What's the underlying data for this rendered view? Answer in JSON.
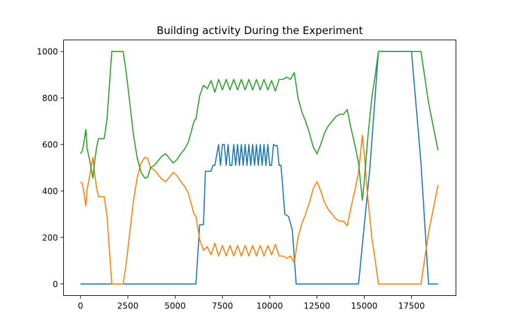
{
  "chart_data": {
    "type": "line",
    "title": "Building activity During the Experiment",
    "xlabel": "",
    "ylabel": "",
    "xlim": [
      -900,
      19850
    ],
    "ylim": [
      -50,
      1050
    ],
    "grid": false,
    "xticks": [
      0,
      2500,
      5000,
      7500,
      10000,
      12500,
      15000,
      17500
    ],
    "xtick_labels": [
      "0",
      "2500",
      "5000",
      "7500",
      "10000",
      "12500",
      "15000",
      "17500"
    ],
    "yticks": [
      0,
      200,
      400,
      600,
      800,
      1000
    ],
    "ytick_labels": [
      "0",
      "200",
      "400",
      "600",
      "800",
      "1000"
    ],
    "series": [
      {
        "color": "#1f77b4",
        "x": [
          0,
          6100,
          6300,
          6500,
          6600,
          6900,
          7000,
          7100,
          7300,
          7400,
          7500,
          7600,
          7700,
          7800,
          7900,
          8000,
          8100,
          8200,
          8300,
          8400,
          8500,
          8600,
          8700,
          8800,
          8900,
          9000,
          9100,
          9200,
          9300,
          9400,
          9500,
          9600,
          9700,
          9800,
          9900,
          10000,
          10100,
          10200,
          10300,
          10400,
          10500,
          10600,
          10800,
          11000,
          11200,
          11400,
          14700,
          15300,
          15750,
          17500,
          18000,
          18400,
          18900
        ],
        "y": [
          0,
          0,
          255,
          255,
          485,
          485,
          510,
          510,
          600,
          510,
          600,
          600,
          510,
          600,
          510,
          510,
          600,
          510,
          600,
          510,
          600,
          510,
          600,
          510,
          600,
          510,
          600,
          510,
          600,
          510,
          600,
          510,
          600,
          510,
          600,
          510,
          510,
          600,
          595,
          595,
          510,
          510,
          300,
          290,
          230,
          0,
          0,
          500,
          1000,
          1000,
          520,
          0,
          0
        ]
      },
      {
        "color": "#ff7f0e",
        "x": [
          0,
          100,
          200,
          280,
          350,
          450,
          550,
          650,
          750,
          850,
          950,
          1100,
          1250,
          1400,
          1650,
          2250,
          2400,
          2600,
          2800,
          3000,
          3200,
          3400,
          3550,
          3700,
          3900,
          4100,
          4300,
          4500,
          4700,
          4900,
          5100,
          5300,
          5500,
          5700,
          5900,
          6000,
          6100,
          6300,
          6500,
          6700,
          6900,
          7100,
          7300,
          7500,
          7700,
          7900,
          8100,
          8300,
          8500,
          8700,
          8900,
          9100,
          9300,
          9500,
          9700,
          9900,
          10100,
          10300,
          10500,
          10700,
          10900,
          11100,
          11300,
          11500,
          11700,
          11900,
          12100,
          12300,
          12500,
          12700,
          12900,
          13100,
          13300,
          13500,
          13700,
          13900,
          14100,
          14300,
          14500,
          14700,
          14800,
          14900,
          15000,
          15200,
          15400,
          15600,
          15750,
          17500,
          18000,
          18400,
          18900
        ],
        "y": [
          440,
          430,
          380,
          335,
          410,
          450,
          500,
          545,
          470,
          410,
          375,
          375,
          375,
          290,
          0,
          0,
          80,
          220,
          360,
          460,
          520,
          545,
          540,
          500,
          490,
          470,
          450,
          440,
          460,
          480,
          465,
          440,
          420,
          390,
          330,
          300,
          290,
          190,
          145,
          160,
          125,
          175,
          120,
          165,
          120,
          165,
          120,
          165,
          120,
          165,
          120,
          165,
          120,
          165,
          120,
          165,
          125,
          170,
          120,
          120,
          110,
          120,
          90,
          200,
          260,
          300,
          350,
          410,
          440,
          400,
          350,
          320,
          300,
          280,
          270,
          270,
          250,
          330,
          400,
          480,
          560,
          640,
          560,
          360,
          200,
          90,
          0,
          0,
          0,
          220,
          425
        ]
      },
      {
        "color": "#2ca02c",
        "x": [
          0,
          100,
          200,
          280,
          350,
          450,
          550,
          650,
          750,
          850,
          950,
          1100,
          1250,
          1400,
          1650,
          2250,
          2400,
          2600,
          2800,
          3000,
          3200,
          3400,
          3550,
          3700,
          3900,
          4100,
          4300,
          4500,
          4700,
          4900,
          5100,
          5300,
          5500,
          5700,
          5900,
          6000,
          6100,
          6300,
          6500,
          6700,
          6900,
          7100,
          7300,
          7500,
          7700,
          7900,
          8100,
          8300,
          8500,
          8700,
          8900,
          9100,
          9300,
          9500,
          9700,
          9900,
          10100,
          10300,
          10500,
          10700,
          10900,
          11100,
          11300,
          11500,
          11700,
          11900,
          12100,
          12300,
          12500,
          12700,
          12900,
          13100,
          13300,
          13500,
          13700,
          13900,
          14100,
          14300,
          14500,
          14700,
          14800,
          14900,
          15000,
          15200,
          15400,
          15600,
          15750,
          17500,
          18000,
          18400,
          18900
        ],
        "y": [
          560,
          575,
          620,
          665,
          580,
          545,
          500,
          455,
          530,
          590,
          625,
          625,
          625,
          710,
          1000,
          1000,
          920,
          780,
          640,
          540,
          480,
          455,
          460,
          500,
          510,
          530,
          550,
          560,
          540,
          520,
          535,
          560,
          580,
          610,
          670,
          700,
          710,
          810,
          855,
          840,
          875,
          825,
          880,
          835,
          880,
          835,
          880,
          835,
          880,
          835,
          880,
          835,
          880,
          835,
          880,
          835,
          875,
          830,
          880,
          880,
          890,
          880,
          910,
          800,
          740,
          700,
          650,
          590,
          560,
          600,
          650,
          680,
          700,
          720,
          730,
          730,
          750,
          670,
          600,
          520,
          440,
          360,
          440,
          640,
          800,
          910,
          1000,
          1000,
          1000,
          780,
          575
        ]
      }
    ]
  }
}
